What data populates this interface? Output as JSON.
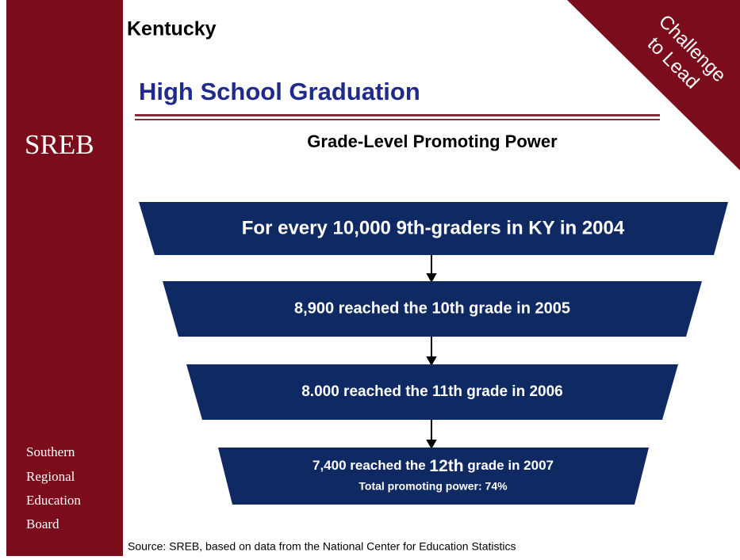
{
  "header": {
    "state": "Kentucky",
    "title": "High School Graduation",
    "subtitle": "Grade-Level Promoting Power"
  },
  "logo": "SREB",
  "banner": [
    "Challenge",
    "to Lead"
  ],
  "funnel": [
    {
      "text": "For every 10,000 9th-graders in KY in 2004"
    },
    {
      "text": "8,900 reached the 10th grade in 2005"
    },
    {
      "text": "8.000 reached the 11th grade in 2006"
    },
    {
      "parts": [
        "7,400 reached the ",
        "12th",
        " grade in 2007"
      ],
      "note": "Total promoting power: 74%"
    }
  ],
  "sidebar": [
    "Southern",
    "Regional",
    "Education",
    "Board"
  ],
  "source": "Source: SREB, based on data from the National Center for Education Statistics"
}
